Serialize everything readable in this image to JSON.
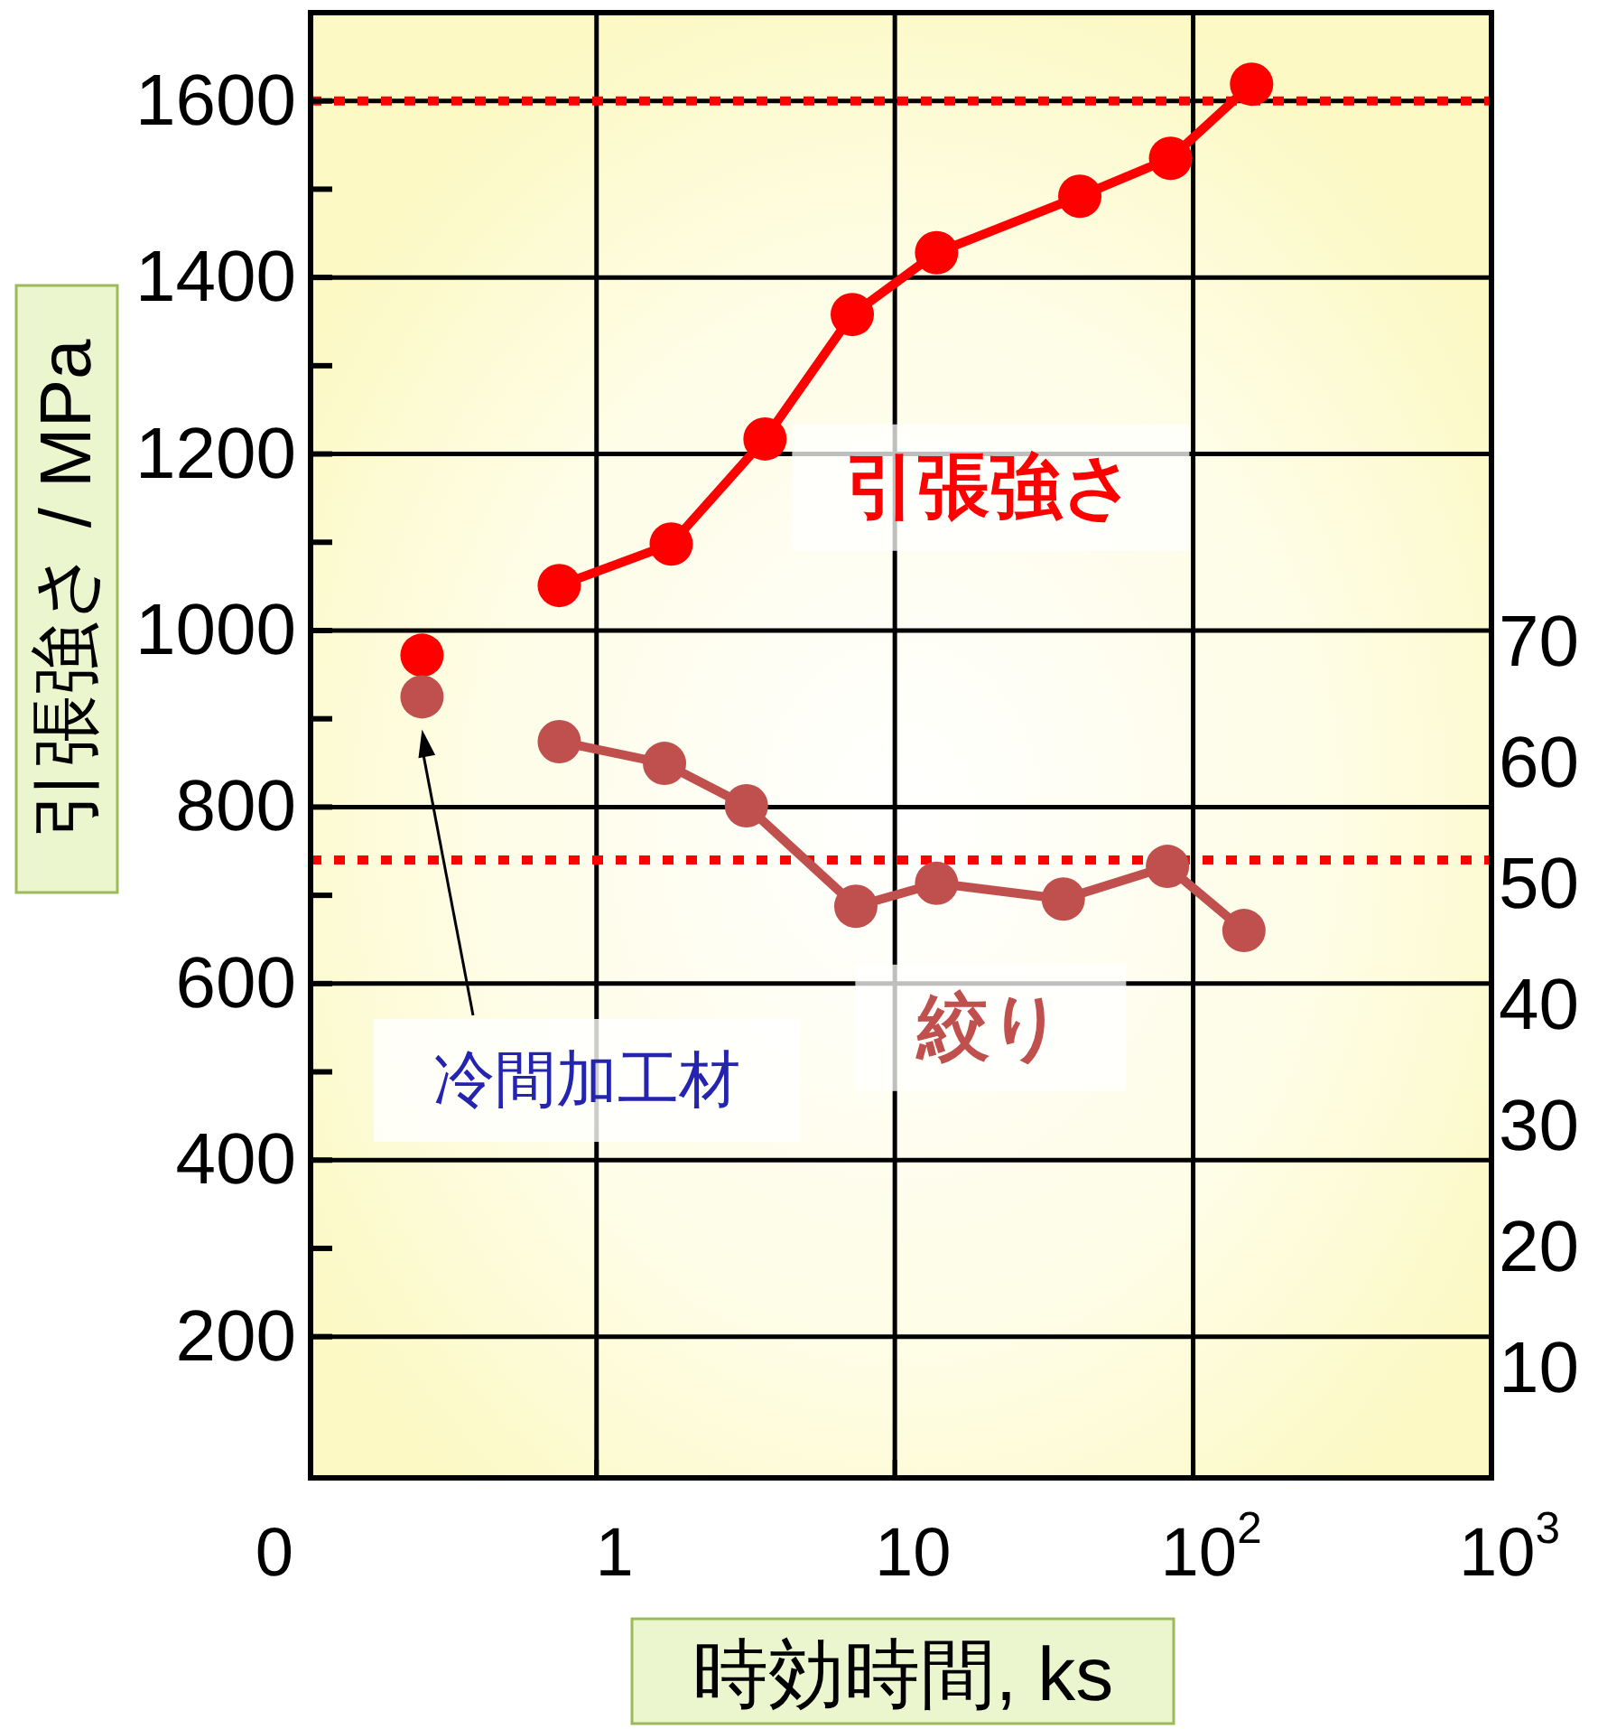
{
  "chart_data": {
    "type": "line",
    "xlabel": "時効時間, ks",
    "ylabel": "引張強さ / MPa",
    "log": "x",
    "grid": true,
    "marker": "circle",
    "line_style": "solid",
    "xlim": [
      0.11,
      1000
    ],
    "xticks": [
      {
        "value": 0.11,
        "label": "0"
      },
      1,
      10,
      {
        "value": 100,
        "label": "10$^{2}$"
      },
      {
        "value": 1000,
        "label": "10$^{3}$"
      }
    ],
    "ylim": [
      40,
      1700
    ],
    "yticks": [
      200,
      {
        "value": 300,
        "label": null
      },
      400,
      {
        "value": 500,
        "label": null
      },
      600,
      {
        "value": 700,
        "label": null
      },
      800,
      {
        "value": 900,
        "label": null
      },
      1000,
      {
        "value": 1100,
        "label": null
      },
      1200,
      {
        "value": 1300,
        "label": null
      },
      1400,
      {
        "value": 1500,
        "label": null
      },
      1600
    ],
    "y2lim": [
      1,
      122
    ],
    "y2ticks": [
      10,
      20,
      30,
      40,
      50,
      60,
      70
    ],
    "series": [
      {
        "type": "scatter",
        "color": "#ff0000",
        "x": [
          0.26
        ],
        "values": [
          972
        ]
      },
      {
        "name": "引張強さ",
        "color": "#ff0000",
        "x": [
          0.75,
          1.78,
          3.67,
          7.2,
          13.8,
          41.7,
          84,
          157
        ],
        "values": [
          1051,
          1098,
          1217,
          1358,
          1428,
          1492,
          1535,
          1619
        ]
      },
      {
        "type": "scatter",
        "color": "#c0504d",
        "axis": "y2",
        "x": [
          0.26
        ],
        "values": [
          65.5
        ]
      },
      {
        "name": "絞り",
        "color": "#c0504d",
        "axis": "y2",
        "x": [
          0.75,
          1.69,
          3.18,
          7.4,
          13.8,
          36.7,
          82,
          148
        ],
        "values": [
          61.8,
          60.0,
          56.5,
          48.2,
          50.1,
          48.8,
          51.5,
          46.2
        ]
      }
    ],
    "ref_lines": [
      {
        "axis": "y",
        "value": 1600,
        "color": "#ff0000",
        "line_style": "dotted"
      },
      {
        "axis": "y",
        "value": 740,
        "color": "#ff0000",
        "line_style": "dotted"
      }
    ],
    "annotations": [
      "冷間加工材"
    ]
  }
}
